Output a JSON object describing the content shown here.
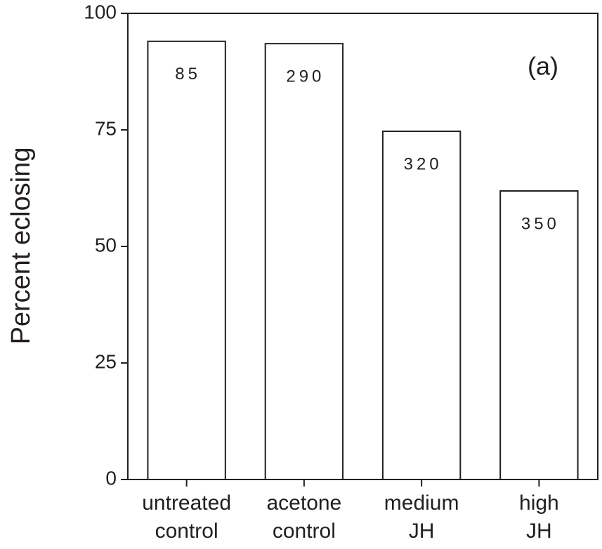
{
  "chart_data": {
    "type": "bar",
    "ylabel": "Percent eclosing",
    "annotation": "(a)",
    "categories": [
      [
        "untreated",
        "control"
      ],
      [
        "acetone",
        "control"
      ],
      [
        "medium",
        "JH"
      ],
      [
        "high",
        "JH"
      ]
    ],
    "values": [
      94,
      93.5,
      74.7,
      61.9
    ],
    "bar_labels": [
      "85",
      "290",
      "320",
      "350"
    ],
    "color": "#ffffff",
    "edge_color": "#231f20",
    "ylim": [
      0,
      100
    ],
    "yticks": [
      0,
      25,
      50,
      75,
      100
    ],
    "grid": false
  }
}
